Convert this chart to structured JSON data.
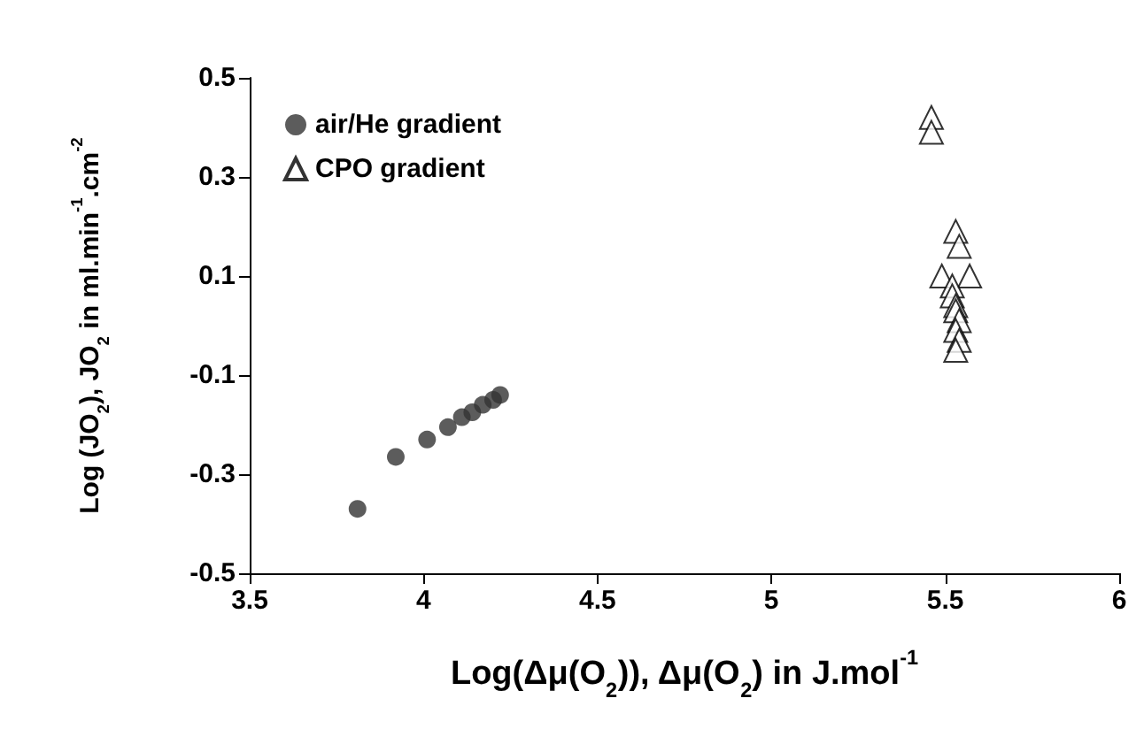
{
  "chart_data": {
    "type": "scatter",
    "xlabel": "Log(Δμ(O$_{2}$)), Δμ(O$_{2}$) in J.mol$^{-1}$",
    "ylabel": "Log (JO$_{2}$), JO$_{2}$ in ml.min$^{-1}$.cm$^{-2}$",
    "xlim": [
      3.5,
      6
    ],
    "xticks": [
      3.5,
      4,
      4.5,
      5,
      5.5,
      6
    ],
    "ylim": [
      -0.5,
      0.5
    ],
    "yticks": [
      -0.5,
      -0.3,
      -0.1,
      0.1,
      0.3,
      0.5
    ],
    "grid": false,
    "legend": "top left",
    "series": [
      {
        "name": "air/He gradient",
        "color": "#333333",
        "marker": "circle",
        "x": [
          3.81,
          3.92,
          4.01,
          4.07,
          4.11,
          4.14,
          4.17,
          4.2,
          4.22
        ],
        "values": [
          -0.37,
          -0.265,
          -0.23,
          -0.205,
          -0.185,
          -0.175,
          -0.16,
          -0.15,
          -0.14
        ]
      },
      {
        "name": "CPO gradient",
        "color": "#000000",
        "marker": "triangle",
        "x": [
          5.46,
          5.46,
          5.53,
          5.54,
          5.49,
          5.57,
          5.52,
          5.52,
          5.53,
          5.53,
          5.54,
          5.53,
          5.54,
          5.53
        ],
        "values": [
          0.42,
          0.39,
          0.19,
          0.16,
          0.1,
          0.1,
          0.08,
          0.06,
          0.04,
          0.03,
          0.01,
          -0.01,
          -0.03,
          -0.05
        ]
      }
    ]
  }
}
